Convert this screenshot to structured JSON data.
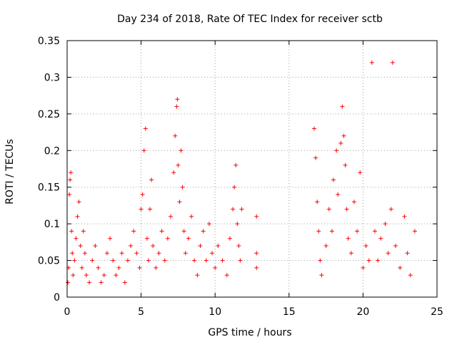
{
  "chart_data": {
    "type": "scatter",
    "title": "Day 234 of 2018, Rate Of TEC Index for receiver sctb",
    "xlabel": "GPS time / hours",
    "ylabel": "ROTI / TECUs",
    "xlim": [
      0,
      25
    ],
    "ylim": [
      0,
      0.35
    ],
    "xticks": [
      0,
      5,
      10,
      15,
      20,
      25
    ],
    "xtick_labels": [
      "0",
      "5",
      "10",
      "15",
      "20",
      "25"
    ],
    "yticks": [
      0,
      0.05,
      0.1,
      0.15,
      0.2,
      0.25,
      0.3,
      0.35
    ],
    "ytick_labels": [
      "0",
      "0.05",
      "0.1",
      "0.15",
      "0.2",
      "0.25",
      "0.3",
      "0.35"
    ],
    "grid": true,
    "marker": "+",
    "series": [
      {
        "name": "ROTI",
        "color": "#ff0000",
        "points": [
          [
            0.05,
            0.02
          ],
          [
            0.1,
            0.04
          ],
          [
            0.15,
            0.14
          ],
          [
            0.2,
            0.16
          ],
          [
            0.25,
            0.17
          ],
          [
            0.3,
            0.09
          ],
          [
            0.35,
            0.06
          ],
          [
            0.4,
            0.03
          ],
          [
            0.5,
            0.05
          ],
          [
            0.6,
            0.08
          ],
          [
            0.7,
            0.11
          ],
          [
            0.8,
            0.13
          ],
          [
            0.9,
            0.07
          ],
          [
            1.0,
            0.04
          ],
          [
            1.1,
            0.09
          ],
          [
            1.2,
            0.06
          ],
          [
            1.3,
            0.03
          ],
          [
            1.5,
            0.02
          ],
          [
            1.7,
            0.05
          ],
          [
            1.9,
            0.07
          ],
          [
            2.1,
            0.04
          ],
          [
            2.3,
            0.02
          ],
          [
            2.5,
            0.03
          ],
          [
            2.7,
            0.06
          ],
          [
            2.9,
            0.08
          ],
          [
            3.1,
            0.05
          ],
          [
            3.3,
            0.03
          ],
          [
            3.5,
            0.04
          ],
          [
            3.7,
            0.06
          ],
          [
            3.9,
            0.02
          ],
          [
            4.1,
            0.05
          ],
          [
            4.3,
            0.07
          ],
          [
            4.5,
            0.09
          ],
          [
            4.7,
            0.06
          ],
          [
            4.9,
            0.04
          ],
          [
            5.0,
            0.12
          ],
          [
            5.1,
            0.14
          ],
          [
            5.2,
            0.2
          ],
          [
            5.3,
            0.23
          ],
          [
            5.4,
            0.08
          ],
          [
            5.5,
            0.05
          ],
          [
            5.6,
            0.12
          ],
          [
            5.7,
            0.16
          ],
          [
            5.8,
            0.07
          ],
          [
            6.0,
            0.04
          ],
          [
            6.2,
            0.06
          ],
          [
            6.4,
            0.09
          ],
          [
            6.6,
            0.05
          ],
          [
            6.8,
            0.08
          ],
          [
            7.0,
            0.11
          ],
          [
            7.2,
            0.17
          ],
          [
            7.3,
            0.22
          ],
          [
            7.4,
            0.26
          ],
          [
            7.45,
            0.27
          ],
          [
            7.5,
            0.18
          ],
          [
            7.6,
            0.13
          ],
          [
            7.7,
            0.2
          ],
          [
            7.8,
            0.15
          ],
          [
            7.9,
            0.09
          ],
          [
            8.0,
            0.06
          ],
          [
            8.2,
            0.08
          ],
          [
            8.4,
            0.11
          ],
          [
            8.6,
            0.05
          ],
          [
            8.8,
            0.03
          ],
          [
            9.0,
            0.07
          ],
          [
            9.2,
            0.09
          ],
          [
            9.4,
            0.05
          ],
          [
            9.6,
            0.1
          ],
          [
            9.8,
            0.06
          ],
          [
            10.0,
            0.04
          ],
          [
            10.2,
            0.07
          ],
          [
            10.5,
            0.05
          ],
          [
            10.8,
            0.03
          ],
          [
            11.0,
            0.08
          ],
          [
            11.2,
            0.12
          ],
          [
            11.3,
            0.15
          ],
          [
            11.4,
            0.18
          ],
          [
            11.5,
            0.1
          ],
          [
            11.6,
            0.07
          ],
          [
            11.7,
            0.05
          ],
          [
            11.8,
            0.12
          ],
          [
            12.8,
            0.04
          ],
          [
            12.8,
            0.06
          ],
          [
            12.8,
            0.11
          ],
          [
            16.7,
            0.23
          ],
          [
            16.8,
            0.19
          ],
          [
            16.9,
            0.13
          ],
          [
            17.0,
            0.09
          ],
          [
            17.1,
            0.05
          ],
          [
            17.2,
            0.03
          ],
          [
            17.5,
            0.07
          ],
          [
            17.7,
            0.12
          ],
          [
            17.9,
            0.09
          ],
          [
            18.0,
            0.16
          ],
          [
            18.2,
            0.2
          ],
          [
            18.3,
            0.14
          ],
          [
            18.5,
            0.21
          ],
          [
            18.6,
            0.26
          ],
          [
            18.7,
            0.22
          ],
          [
            18.8,
            0.18
          ],
          [
            18.9,
            0.12
          ],
          [
            19.0,
            0.08
          ],
          [
            19.2,
            0.06
          ],
          [
            19.4,
            0.13
          ],
          [
            19.6,
            0.09
          ],
          [
            19.8,
            0.17
          ],
          [
            20.0,
            0.04
          ],
          [
            20.2,
            0.07
          ],
          [
            20.4,
            0.05
          ],
          [
            20.6,
            0.32
          ],
          [
            20.8,
            0.09
          ],
          [
            21.0,
            0.05
          ],
          [
            21.2,
            0.08
          ],
          [
            21.5,
            0.1
          ],
          [
            21.7,
            0.06
          ],
          [
            21.9,
            0.12
          ],
          [
            22.0,
            0.32
          ],
          [
            22.2,
            0.07
          ],
          [
            22.5,
            0.04
          ],
          [
            22.8,
            0.11
          ],
          [
            23.0,
            0.06
          ],
          [
            23.2,
            0.03
          ],
          [
            23.5,
            0.09
          ]
        ]
      }
    ]
  }
}
